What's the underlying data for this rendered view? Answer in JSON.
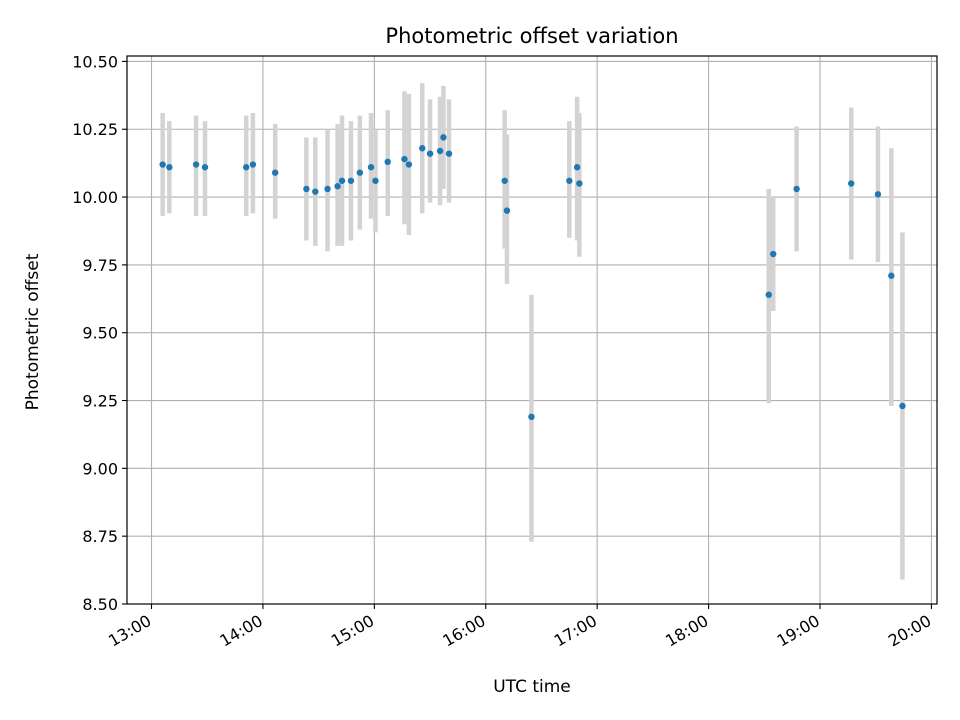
{
  "chart_data": {
    "type": "scatter",
    "title": "Photometric offset variation",
    "xlabel": "UTC time",
    "ylabel": "Photometric offset",
    "x_unit": "UTC hour",
    "xlim": [
      12.78,
      20.05
    ],
    "ylim": [
      8.5,
      10.52
    ],
    "grid": true,
    "x_ticks": [
      {
        "value": 13,
        "label": "13:00"
      },
      {
        "value": 14,
        "label": "14:00"
      },
      {
        "value": 15,
        "label": "15:00"
      },
      {
        "value": 16,
        "label": "16:00"
      },
      {
        "value": 17,
        "label": "17:00"
      },
      {
        "value": 18,
        "label": "18:00"
      },
      {
        "value": 19,
        "label": "19:00"
      },
      {
        "value": 20,
        "label": "20:00"
      }
    ],
    "y_ticks": [
      {
        "value": 8.5,
        "label": "8.50"
      },
      {
        "value": 8.75,
        "label": "8.75"
      },
      {
        "value": 9.0,
        "label": "9.00"
      },
      {
        "value": 9.25,
        "label": "9.25"
      },
      {
        "value": 9.5,
        "label": "9.50"
      },
      {
        "value": 9.75,
        "label": "9.75"
      },
      {
        "value": 10.0,
        "label": "10.00"
      },
      {
        "value": 10.25,
        "label": "10.25"
      },
      {
        "value": 10.5,
        "label": "10.50"
      }
    ],
    "point_color": "#1f77b4",
    "errorbar_color": "#d3d3d3",
    "points": [
      {
        "x": 13.1,
        "y": 10.12,
        "low": 9.93,
        "high": 10.31
      },
      {
        "x": 13.16,
        "y": 10.11,
        "low": 9.94,
        "high": 10.28
      },
      {
        "x": 13.4,
        "y": 10.12,
        "low": 9.93,
        "high": 10.3
      },
      {
        "x": 13.48,
        "y": 10.11,
        "low": 9.93,
        "high": 10.28
      },
      {
        "x": 13.85,
        "y": 10.11,
        "low": 9.93,
        "high": 10.3
      },
      {
        "x": 13.91,
        "y": 10.12,
        "low": 9.94,
        "high": 10.31
      },
      {
        "x": 14.11,
        "y": 10.09,
        "low": 9.92,
        "high": 10.27
      },
      {
        "x": 14.39,
        "y": 10.03,
        "low": 9.84,
        "high": 10.22
      },
      {
        "x": 14.47,
        "y": 10.02,
        "low": 9.82,
        "high": 10.22
      },
      {
        "x": 14.58,
        "y": 10.03,
        "low": 9.8,
        "high": 10.25
      },
      {
        "x": 14.67,
        "y": 10.04,
        "low": 9.82,
        "high": 10.27
      },
      {
        "x": 14.71,
        "y": 10.06,
        "low": 9.82,
        "high": 10.3
      },
      {
        "x": 14.79,
        "y": 10.06,
        "low": 9.84,
        "high": 10.28
      },
      {
        "x": 14.87,
        "y": 10.09,
        "low": 9.88,
        "high": 10.3
      },
      {
        "x": 14.97,
        "y": 10.11,
        "low": 9.92,
        "high": 10.31
      },
      {
        "x": 15.01,
        "y": 10.06,
        "low": 9.87,
        "high": 10.25
      },
      {
        "x": 15.12,
        "y": 10.13,
        "low": 9.93,
        "high": 10.32
      },
      {
        "x": 15.27,
        "y": 10.14,
        "low": 9.9,
        "high": 10.39
      },
      {
        "x": 15.31,
        "y": 10.12,
        "low": 9.86,
        "high": 10.38
      },
      {
        "x": 15.43,
        "y": 10.18,
        "low": 9.94,
        "high": 10.42
      },
      {
        "x": 15.5,
        "y": 10.16,
        "low": 9.98,
        "high": 10.36
      },
      {
        "x": 15.59,
        "y": 10.17,
        "low": 9.97,
        "high": 10.37
      },
      {
        "x": 15.62,
        "y": 10.22,
        "low": 10.03,
        "high": 10.41
      },
      {
        "x": 15.67,
        "y": 10.16,
        "low": 9.98,
        "high": 10.36
      },
      {
        "x": 16.17,
        "y": 10.06,
        "low": 9.81,
        "high": 10.32
      },
      {
        "x": 16.19,
        "y": 9.95,
        "low": 9.68,
        "high": 10.23
      },
      {
        "x": 16.41,
        "y": 9.19,
        "low": 8.73,
        "high": 9.64
      },
      {
        "x": 16.75,
        "y": 10.06,
        "low": 9.85,
        "high": 10.28
      },
      {
        "x": 16.82,
        "y": 10.11,
        "low": 9.84,
        "high": 10.37
      },
      {
        "x": 16.84,
        "y": 10.05,
        "low": 9.78,
        "high": 10.31
      },
      {
        "x": 18.54,
        "y": 9.64,
        "low": 9.24,
        "high": 10.03
      },
      {
        "x": 18.58,
        "y": 9.79,
        "low": 9.58,
        "high": 10.0
      },
      {
        "x": 18.79,
        "y": 10.03,
        "low": 9.8,
        "high": 10.26
      },
      {
        "x": 19.28,
        "y": 10.05,
        "low": 9.77,
        "high": 10.33
      },
      {
        "x": 19.52,
        "y": 10.01,
        "low": 9.76,
        "high": 10.26
      },
      {
        "x": 19.64,
        "y": 9.71,
        "low": 9.23,
        "high": 10.18
      },
      {
        "x": 19.74,
        "y": 9.23,
        "low": 8.59,
        "high": 9.87
      }
    ]
  }
}
